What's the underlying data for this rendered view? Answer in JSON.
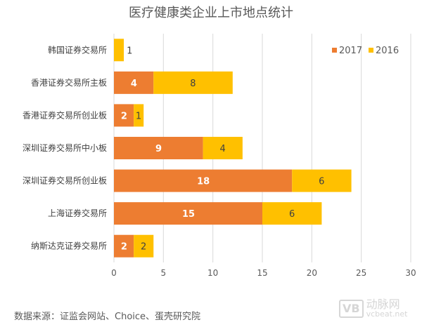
{
  "chart_data": {
    "type": "bar",
    "orientation": "horizontal",
    "stacked": true,
    "title": "医疗健康类企业上市地点统计",
    "categories": [
      "韩国证券交易所",
      "香港证券交易所主板",
      "香港证券交易所创业板",
      "深圳证券交易所中小板",
      "深圳证券交易所创业板",
      "上海证券交易所",
      "纳斯达克证券交易所"
    ],
    "series": [
      {
        "name": "2017",
        "color": "#ED7D31",
        "values": [
          0,
          4,
          2,
          9,
          18,
          15,
          2
        ]
      },
      {
        "name": "2016",
        "color": "#FFC000",
        "values": [
          1,
          8,
          1,
          4,
          6,
          6,
          2
        ]
      }
    ],
    "xlim": [
      0,
      30
    ],
    "xticks": [
      "0",
      "5",
      "10",
      "15",
      "20",
      "25",
      "30"
    ],
    "xlabel": "",
    "ylabel": "",
    "grid": true,
    "legend": "top-right"
  },
  "source": "数据来源：证监会网站、Choice、蛋壳研究院",
  "watermark": {
    "logo": "VB",
    "name": "动脉网",
    "url": "vcbeat.net"
  }
}
